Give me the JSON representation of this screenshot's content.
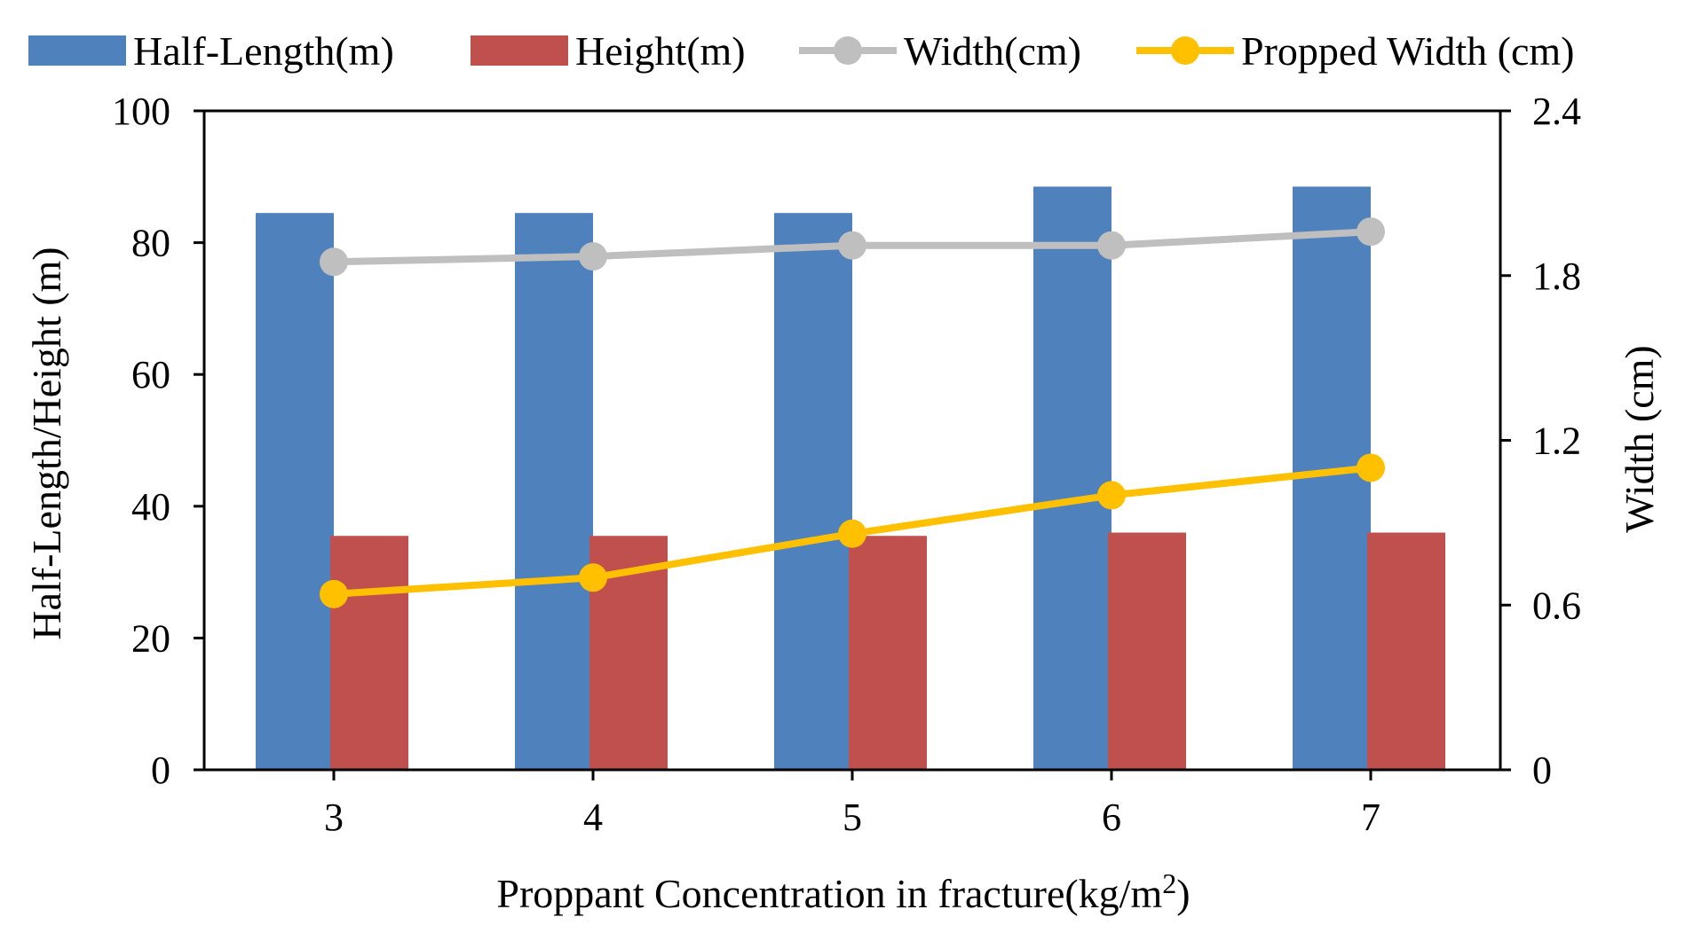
{
  "chart_data": {
    "type": "bar+line (dual axis)",
    "categories": [
      "3",
      "4",
      "5",
      "6",
      "7"
    ],
    "series": [
      {
        "name": "Half-Length(m)",
        "kind": "bar",
        "axis": "left",
        "color": "#4F81BD",
        "values": [
          84.5,
          84.5,
          84.5,
          88.5,
          88.5
        ]
      },
      {
        "name": "Height(m)",
        "kind": "bar",
        "axis": "left",
        "color": "#C0504D",
        "values": [
          35.5,
          35.5,
          35.5,
          36,
          36
        ]
      },
      {
        "name": "Width(cm)",
        "kind": "line",
        "axis": "right",
        "color": "#BFBFBF",
        "values": [
          1.85,
          1.87,
          1.91,
          1.91,
          1.96
        ]
      },
      {
        "name": "Propped Width (cm)",
        "kind": "line",
        "axis": "right",
        "color": "#FFC000",
        "values": [
          0.64,
          0.7,
          0.86,
          1.0,
          1.1
        ]
      }
    ],
    "xlabel_main": "Proppant Concentration in fracture(kg/m",
    "xlabel_sup": "2",
    "xlabel_end": ")",
    "ylabel_left": "Half-Length/Height  (m)",
    "ylabel_right": "Width (cm)",
    "ylim_left": [
      0,
      100
    ],
    "yticks_left": [
      0,
      20,
      40,
      60,
      80,
      100
    ],
    "ylim_right": [
      0,
      2.4
    ],
    "yticks_right": [
      "0",
      "0.6",
      "1.2",
      "1.8",
      "2.4"
    ],
    "legend_position": "top",
    "grid": false
  }
}
